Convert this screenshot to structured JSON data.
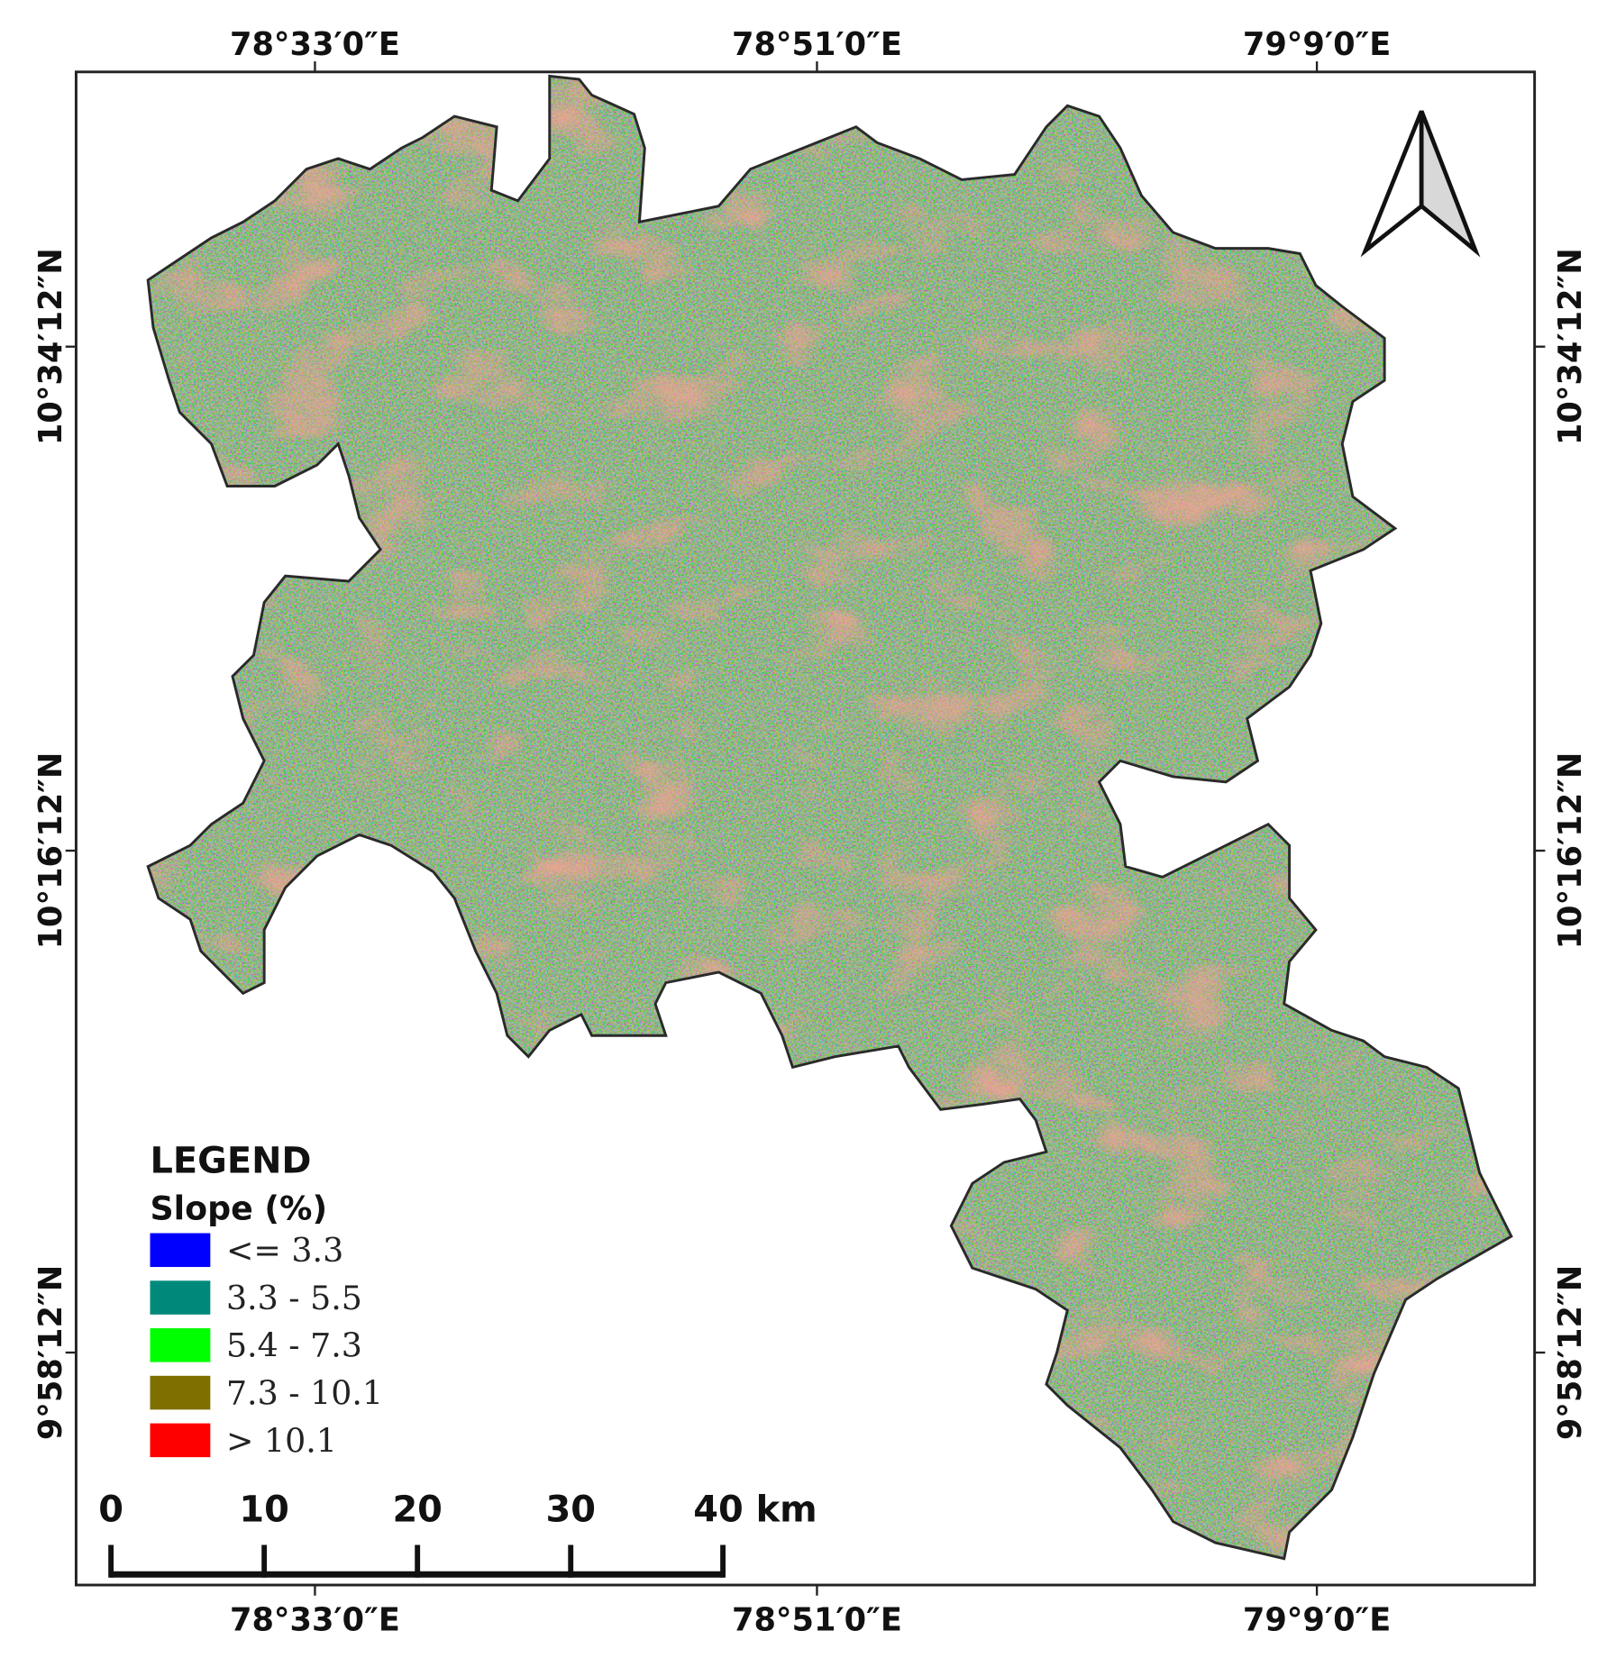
{
  "map": {
    "longitude_labels": [
      "78°33′0″E",
      "78°51′0″E",
      "79°9′0″E"
    ],
    "latitude_labels": [
      "10°34′12″N",
      "10°16′12″N",
      "9°58′12″N"
    ],
    "legend": {
      "title": "LEGEND",
      "subtitle": "Slope (%)",
      "classes": [
        {
          "label": "<= 3.3",
          "color": "#0000ff"
        },
        {
          "label": "3.3 - 5.5",
          "color": "#00897b"
        },
        {
          "label": "5.4 - 7.3",
          "color": "#00ff00"
        },
        {
          "label": "7.3 - 10.1",
          "color": "#7f6f00"
        },
        {
          "label": "> 10.1",
          "color": "#ff0000"
        }
      ]
    },
    "scale_bar": {
      "labels": [
        "0",
        "10",
        "20",
        "30",
        "40 km"
      ]
    }
  }
}
